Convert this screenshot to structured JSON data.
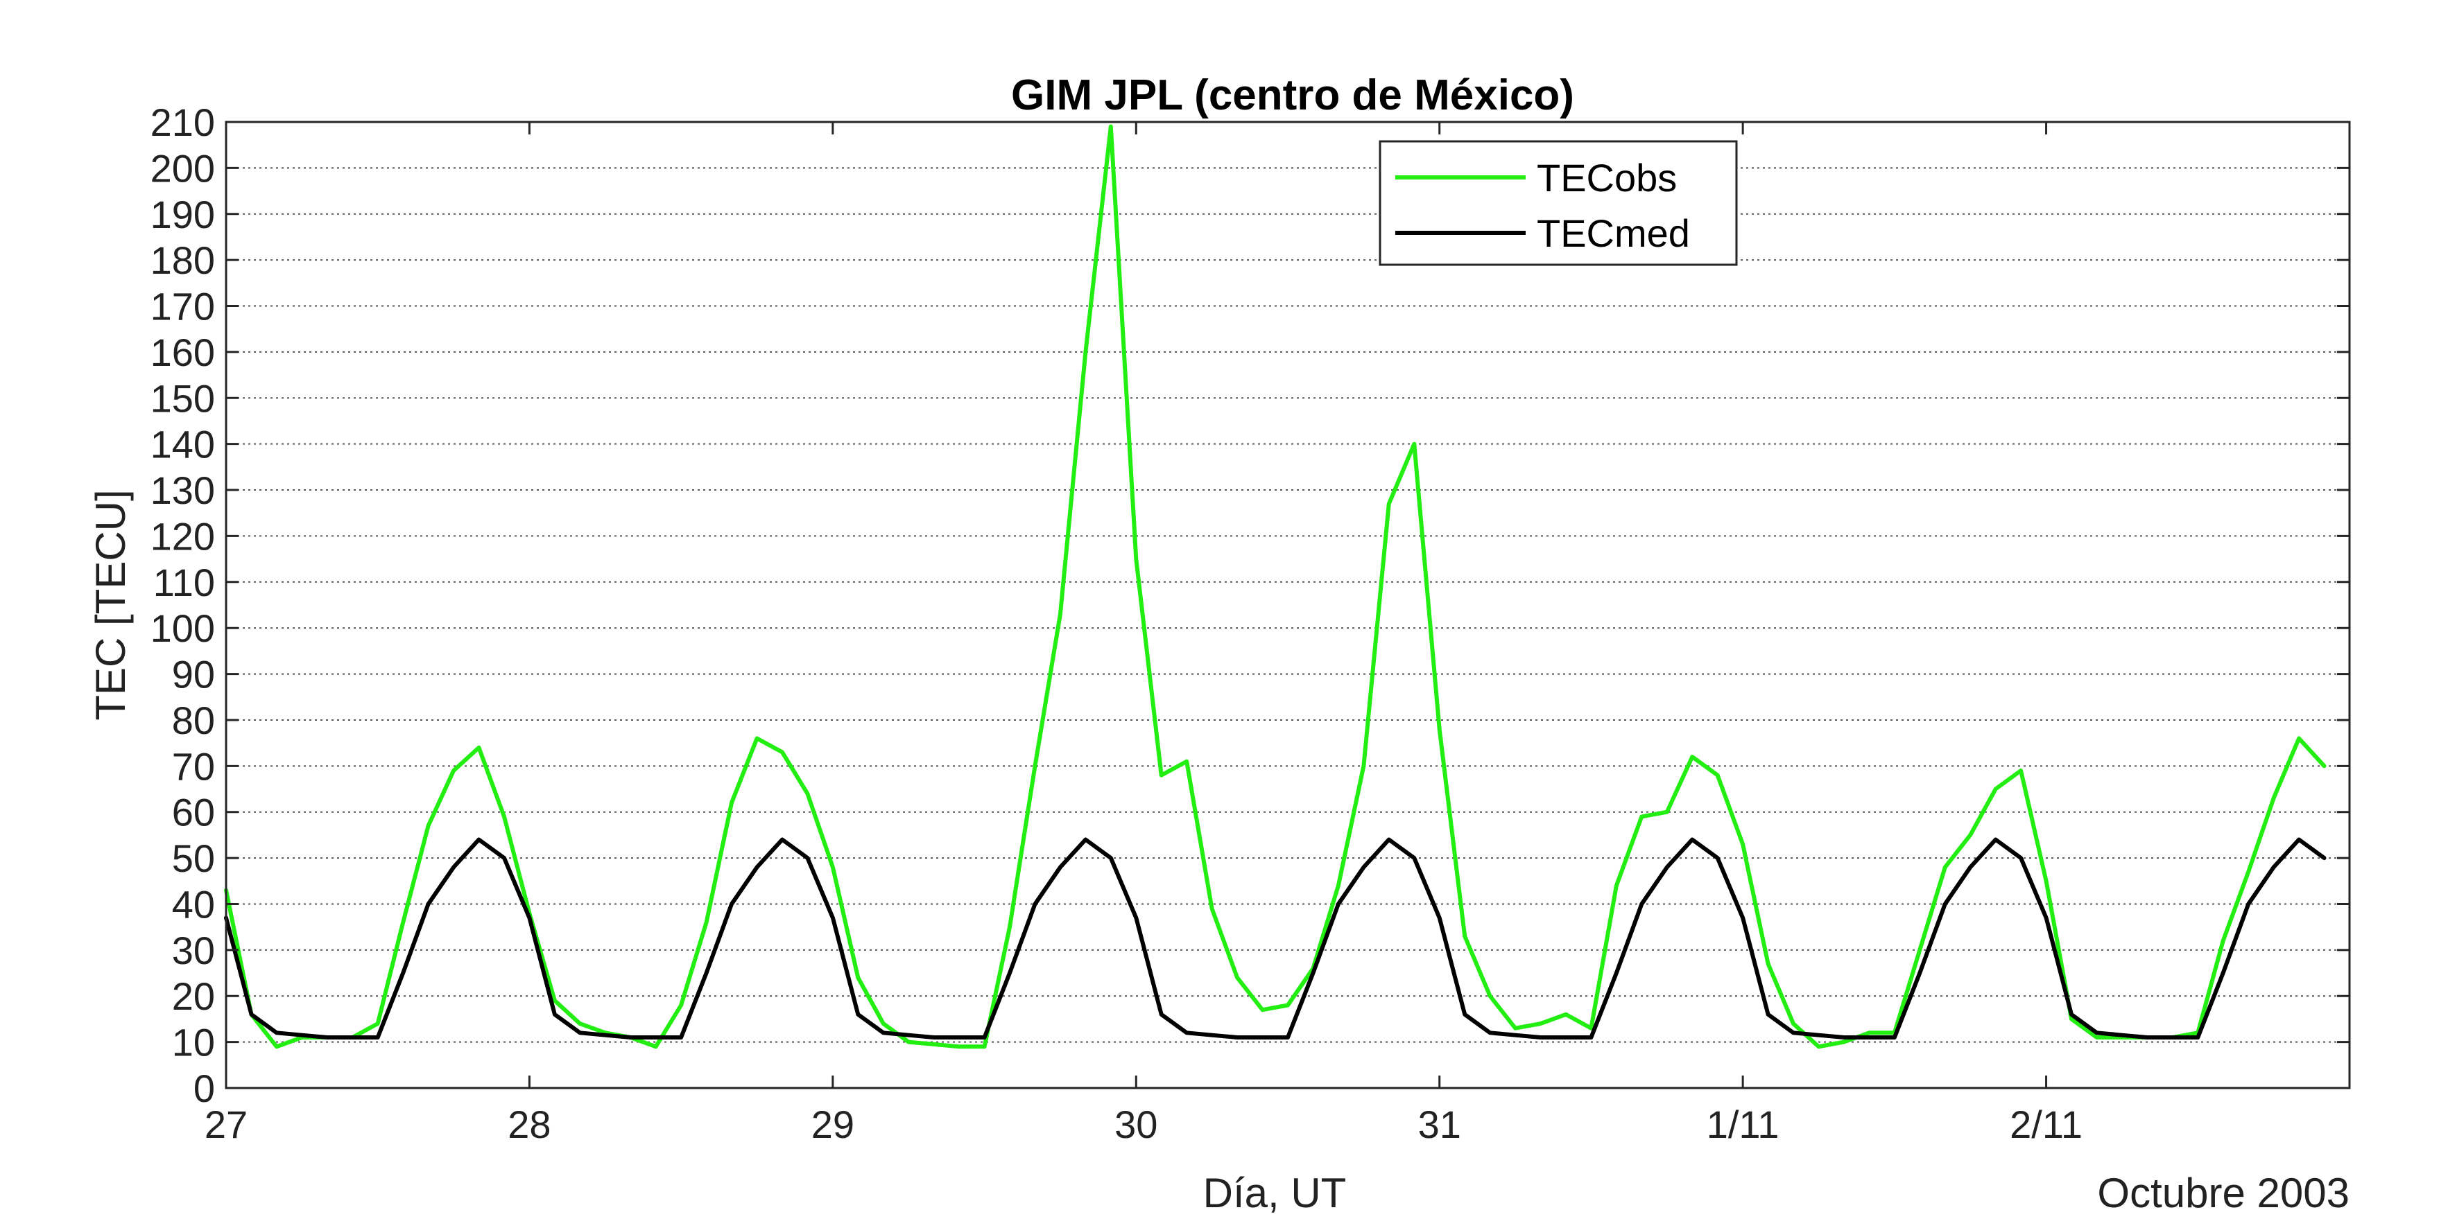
{
  "chart_data": {
    "type": "line",
    "title": "GIM JPL (centro de México)",
    "xlabel": "Día, UT",
    "ylabel": "TEC [TECU]",
    "x_annotation": "Octubre 2003",
    "xlim": [
      27,
      34
    ],
    "ylim": [
      0,
      210
    ],
    "x_ticks": [
      {
        "value": 27,
        "label": "27"
      },
      {
        "value": 28,
        "label": "28"
      },
      {
        "value": 29,
        "label": "29"
      },
      {
        "value": 30,
        "label": "30"
      },
      {
        "value": 31,
        "label": "31"
      },
      {
        "value": 32,
        "label": "1/11"
      },
      {
        "value": 33,
        "label": "2/11"
      }
    ],
    "y_ticks": [
      0,
      10,
      20,
      30,
      40,
      50,
      60,
      70,
      80,
      90,
      100,
      110,
      120,
      130,
      140,
      150,
      160,
      170,
      180,
      190,
      200,
      210
    ],
    "grid": "horizontal-dotted",
    "legend": "top-center",
    "colors": {
      "TECobs": "#22ee11",
      "TECmed": "#000000"
    },
    "x_step_days": 0.0833333,
    "series": [
      {
        "name": "TECobs",
        "values": [
          43,
          16,
          9,
          11,
          11,
          11,
          14,
          36,
          57,
          69,
          74,
          59,
          38,
          19,
          14,
          12,
          11,
          9,
          18,
          36,
          62,
          76,
          73,
          64,
          48,
          24,
          14,
          10,
          9.5,
          9,
          9,
          35,
          70,
          103,
          160,
          209,
          115,
          68,
          71,
          39,
          24,
          17,
          18,
          26,
          44,
          70,
          127,
          140,
          78,
          33,
          20,
          13,
          14,
          16,
          13,
          44,
          59,
          60,
          72,
          68,
          53,
          27,
          14,
          9,
          10,
          12,
          12,
          30,
          48,
          55,
          65,
          69,
          45,
          15,
          11,
          11,
          11,
          11,
          12,
          32,
          47,
          63,
          76,
          70
        ]
      },
      {
        "name": "TECmed",
        "values": [
          37,
          16,
          12,
          11.5,
          11,
          11,
          11,
          25,
          40,
          48,
          54,
          50,
          37,
          16,
          12,
          11.5,
          11,
          11,
          11,
          25,
          40,
          48,
          54,
          50,
          37,
          16,
          12,
          11.5,
          11,
          11,
          11,
          25,
          40,
          48,
          54,
          50,
          37,
          16,
          12,
          11.5,
          11,
          11,
          11,
          25,
          40,
          48,
          54,
          50,
          37,
          16,
          12,
          11.5,
          11,
          11,
          11,
          25,
          40,
          48,
          54,
          50,
          37,
          16,
          12,
          11.5,
          11,
          11,
          11,
          25,
          40,
          48,
          54,
          50,
          37,
          16,
          12,
          11.5,
          11,
          11,
          11,
          25,
          40,
          48,
          54,
          50
        ]
      }
    ]
  }
}
